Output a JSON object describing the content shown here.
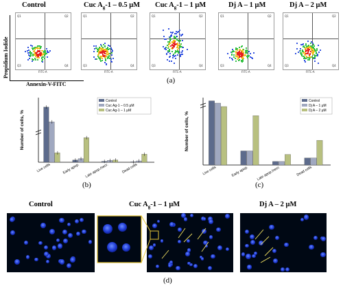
{
  "flow_panels": [
    {
      "title_pre": "Control",
      "title_sub": "",
      "title_post": "",
      "quadrants": [
        "Q1",
        "Q2",
        "Q3",
        "Q4"
      ]
    },
    {
      "title_pre": "Cuc A",
      "title_sub": "g",
      "title_post": "-1 – 0.5 μM",
      "quadrants": [
        "Q1",
        "Q2",
        "Q3",
        "Q4"
      ]
    },
    {
      "title_pre": "Cuc A",
      "title_sub": "g",
      "title_post": "-1 – 1 μM",
      "quadrants": [
        "Q1",
        "Q2",
        "Q3",
        "Q4"
      ]
    },
    {
      "title_pre": "Dj A – 1 μM",
      "title_sub": "",
      "title_post": "",
      "quadrants": [
        "Q1",
        "Q2",
        "Q3",
        "Q4"
      ]
    },
    {
      "title_pre": "Dj A – 2 μM",
      "title_sub": "",
      "title_post": "",
      "quadrants": [
        "Q1",
        "Q2",
        "Q3",
        "Q4"
      ]
    }
  ],
  "flow_axes": {
    "y": "Propidium Iodide",
    "x": "Annexin-V-FITC",
    "fc_x": "FITC-A",
    "fc_y": "PE-A"
  },
  "labels": {
    "a": "(a)",
    "b": "(b)",
    "c": "(c)",
    "d": "(d)"
  },
  "chart_data": [
    {
      "type": "bar",
      "ylabel": "Number of cells, %",
      "categories": [
        "Live cells",
        "Early apop.",
        "Late apop./necr.",
        "Dead cells"
      ],
      "series": [
        {
          "name": "Control",
          "color": "#5d6b8c",
          "values": [
            93,
            5,
            2,
            1
          ]
        },
        {
          "name": "Cuc Ag-1 – 0.5 μM",
          "color": "#a0a8c0",
          "values": [
            82,
            8,
            4,
            3
          ]
        },
        {
          "name": "Cuc Ag-1 – 1 μM",
          "color": "#b8c080",
          "values": [
            21,
            55,
            5,
            18
          ]
        }
      ],
      "error_bars": true
    },
    {
      "type": "bar",
      "ylabel": "Number of cells, %",
      "categories": [
        "Live cells",
        "Early apop.",
        "Late apop./necr.",
        "Dead cells"
      ],
      "series": [
        {
          "name": "Control",
          "color": "#5d6b8c",
          "values": [
            93,
            4,
            1,
            2
          ]
        },
        {
          "name": "Dj A – 1 μM",
          "color": "#a0a8c0",
          "values": [
            88,
            4,
            1,
            2
          ]
        },
        {
          "name": "Dj A – 2 μM",
          "color": "#b8c080",
          "values": [
            65,
            14,
            3,
            7
          ]
        }
      ]
    }
  ],
  "microscopy": [
    {
      "title_pre": "Control",
      "title_sub": "",
      "title_post": ""
    },
    {
      "title_pre": "Cuc A",
      "title_sub": "g",
      "title_post": "-1 – 1 μM"
    },
    {
      "title_pre": "Dj A – 2 μM",
      "title_sub": "",
      "title_post": ""
    }
  ]
}
